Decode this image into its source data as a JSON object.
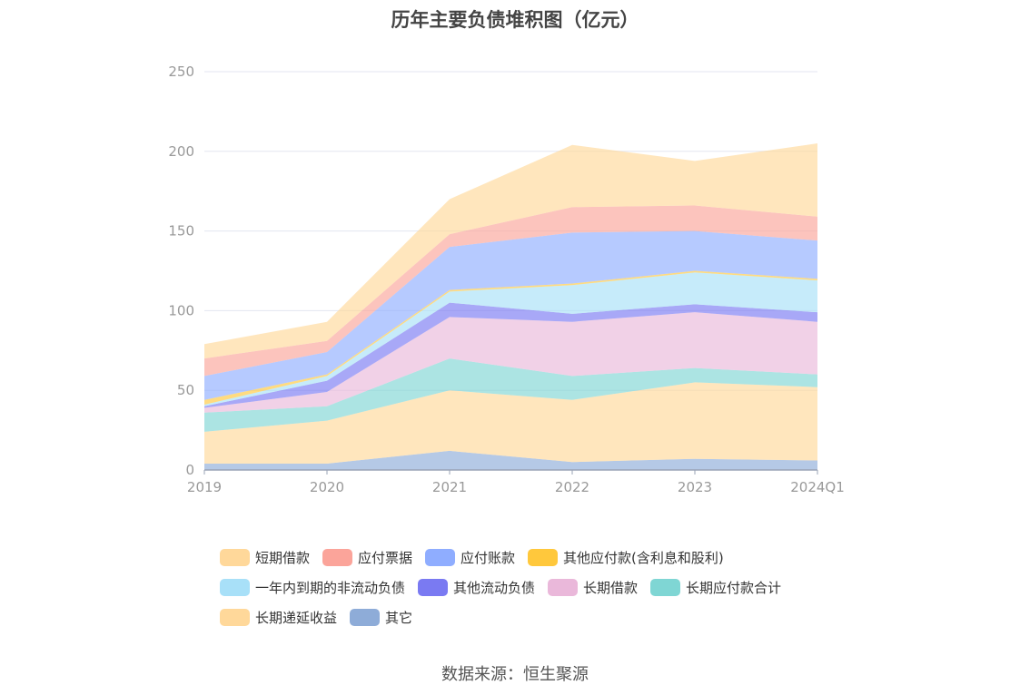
{
  "chart_data": {
    "type": "area",
    "title": "历年主要负债堆积图（亿元）",
    "categories": [
      "2019",
      "2020",
      "2021",
      "2022",
      "2023",
      "2024Q1"
    ],
    "ylim": [
      0,
      250
    ],
    "yticks": [
      "0",
      "50",
      "100",
      "150",
      "200",
      "250"
    ],
    "stacked": true,
    "grid": true,
    "legend_position": "bottom",
    "series": [
      {
        "name": "其它",
        "color": "#8eacd8",
        "values": [
          4,
          4,
          12,
          5,
          7,
          6
        ]
      },
      {
        "name": "长期递延收益",
        "color": "#ffd89a",
        "values": [
          20,
          27,
          38,
          39,
          48,
          46
        ]
      },
      {
        "name": "长期应付款合计",
        "color": "#7fd6d4",
        "values": [
          12,
          9,
          20,
          15,
          9,
          8
        ]
      },
      {
        "name": "长期借款",
        "color": "#eab8da",
        "values": [
          3,
          9,
          26,
          34,
          35,
          33
        ]
      },
      {
        "name": "其他流动负债",
        "color": "#7a7af2",
        "values": [
          1,
          7,
          9,
          5,
          5,
          6
        ]
      },
      {
        "name": "一年内到期的非流动负债",
        "color": "#a8e0f8",
        "values": [
          1,
          3,
          7,
          18,
          20,
          20
        ]
      },
      {
        "name": "其他应付款(含利息和股利)",
        "color": "#ffc83c",
        "values": [
          3,
          1,
          1,
          1,
          1,
          1
        ]
      },
      {
        "name": "应付账款",
        "color": "#8fadff",
        "values": [
          15,
          14,
          27,
          32,
          25,
          24
        ]
      },
      {
        "name": "应付票据",
        "color": "#fba49a",
        "values": [
          11,
          7,
          8,
          16,
          16,
          15
        ]
      },
      {
        "name": "短期借款",
        "color": "#ffd89a",
        "values": [
          9,
          12,
          22,
          39,
          28,
          46
        ]
      }
    ]
  },
  "legend": {
    "rows": [
      [
        "短期借款",
        "应付票据",
        "应付账款",
        "其他应付款(含利息和股利)"
      ],
      [
        "一年内到期的非流动负债",
        "其他流动负债",
        "长期借款",
        "长期应付款合计"
      ],
      [
        "长期递延收益",
        "其它"
      ]
    ]
  },
  "source": "数据来源：恒生聚源"
}
